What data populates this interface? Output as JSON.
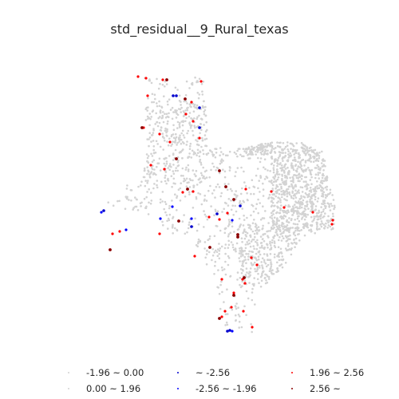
{
  "title": "std_residual__9_Rural_texas",
  "legend": [
    {
      "label": "-1.96 ~ 0.00",
      "color": "#d3d3d3"
    },
    {
      "label": "0.00 ~ 1.96",
      "color": "#d3d3d3"
    },
    {
      "label": "~ -2.56",
      "color": "#0000cd"
    },
    {
      "label": "-2.56 ~ -1.96",
      "color": "#0000ff"
    },
    {
      "label": "1.96 ~ 2.56",
      "color": "#ff0000"
    },
    {
      "label": "2.56 ~",
      "color": "#8b0000"
    }
  ]
}
